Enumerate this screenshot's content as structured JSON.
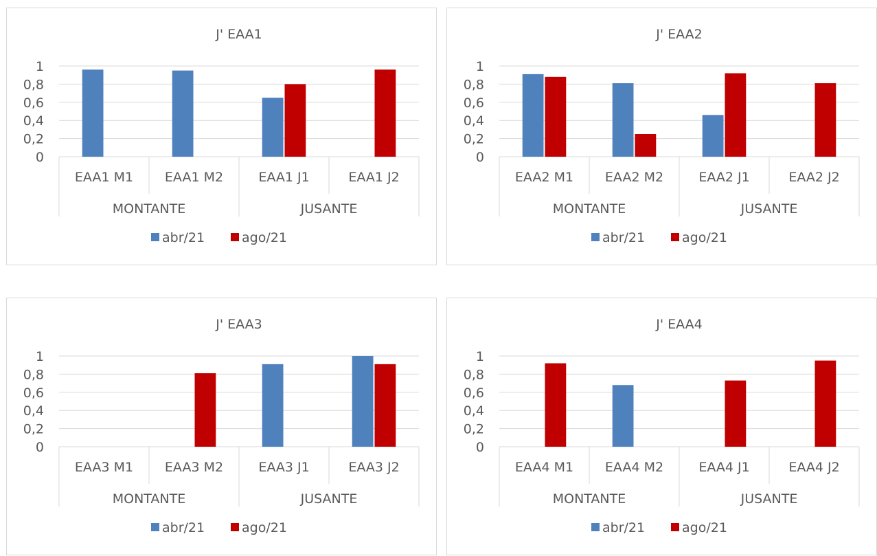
{
  "chart_data": [
    {
      "type": "bar",
      "title": "J' EAA1",
      "groups": [
        {
          "label": "MONTANTE",
          "categories": [
            "EAA1 M1",
            "EAA1 M2"
          ]
        },
        {
          "label": "JUSANTE",
          "categories": [
            "EAA1 J1",
            "EAA1 J2"
          ]
        }
      ],
      "categories": [
        "EAA1 M1",
        "EAA1 M2",
        "EAA1 J1",
        "EAA1 J2"
      ],
      "series": [
        {
          "name": "abr/21",
          "color": "#4f81bd",
          "values": [
            0.96,
            0.95,
            0.65,
            null
          ]
        },
        {
          "name": "ago/21",
          "color": "#c00000",
          "values": [
            null,
            null,
            0.8,
            0.96
          ]
        }
      ],
      "yticks": [
        "0",
        "0,2",
        "0,4",
        "0,6",
        "0,8",
        "1"
      ],
      "ylim": [
        0,
        1
      ],
      "grid": true,
      "legend": "bottom"
    },
    {
      "type": "bar",
      "title": "J' EAA2",
      "groups": [
        {
          "label": "MONTANTE",
          "categories": [
            "EAA2 M1",
            "EAA2 M2"
          ]
        },
        {
          "label": "JUSANTE",
          "categories": [
            "EAA2 J1",
            "EAA2 J2"
          ]
        }
      ],
      "categories": [
        "EAA2 M1",
        "EAA2 M2",
        "EAA2 J1",
        "EAA2 J2"
      ],
      "series": [
        {
          "name": "abr/21",
          "color": "#4f81bd",
          "values": [
            0.91,
            0.81,
            0.46,
            null
          ]
        },
        {
          "name": "ago/21",
          "color": "#c00000",
          "values": [
            0.88,
            0.25,
            0.92,
            0.81
          ]
        }
      ],
      "yticks": [
        "0",
        "0,2",
        "0,4",
        "0,6",
        "0,8",
        "1"
      ],
      "ylim": [
        0,
        1
      ],
      "grid": true,
      "legend": "bottom"
    },
    {
      "type": "bar",
      "title": "J' EAA3",
      "groups": [
        {
          "label": "MONTANTE",
          "categories": [
            "EAA3 M1",
            "EAA3 M2"
          ]
        },
        {
          "label": "JUSANTE",
          "categories": [
            "EAA3 J1",
            "EAA3 J2"
          ]
        }
      ],
      "categories": [
        "EAA3 M1",
        "EAA3 M2",
        "EAA3 J1",
        "EAA3 J2"
      ],
      "series": [
        {
          "name": "abr/21",
          "color": "#4f81bd",
          "values": [
            null,
            null,
            0.91,
            1.0
          ]
        },
        {
          "name": "ago/21",
          "color": "#c00000",
          "values": [
            null,
            0.81,
            null,
            0.91
          ]
        }
      ],
      "yticks": [
        "0",
        "0,2",
        "0,4",
        "0,6",
        "0,8",
        "1"
      ],
      "ylim": [
        0,
        1
      ],
      "grid": true,
      "legend": "bottom"
    },
    {
      "type": "bar",
      "title": "J' EAA4",
      "groups": [
        {
          "label": "MONTANTE",
          "categories": [
            "EAA4 M1",
            "EAA4 M2"
          ]
        },
        {
          "label": "JUSANTE",
          "categories": [
            "EAA4 J1",
            "EAA4 J2"
          ]
        }
      ],
      "categories": [
        "EAA4 M1",
        "EAA4 M2",
        "EAA4 J1",
        "EAA4 J2"
      ],
      "series": [
        {
          "name": "abr/21",
          "color": "#4f81bd",
          "values": [
            null,
            0.68,
            null,
            null
          ]
        },
        {
          "name": "ago/21",
          "color": "#c00000",
          "values": [
            0.92,
            null,
            0.73,
            0.95
          ]
        }
      ],
      "yticks": [
        "0",
        "0,2",
        "0,4",
        "0,6",
        "0,8",
        "1"
      ],
      "ylim": [
        0,
        1
      ],
      "grid": true,
      "legend": "bottom"
    }
  ]
}
